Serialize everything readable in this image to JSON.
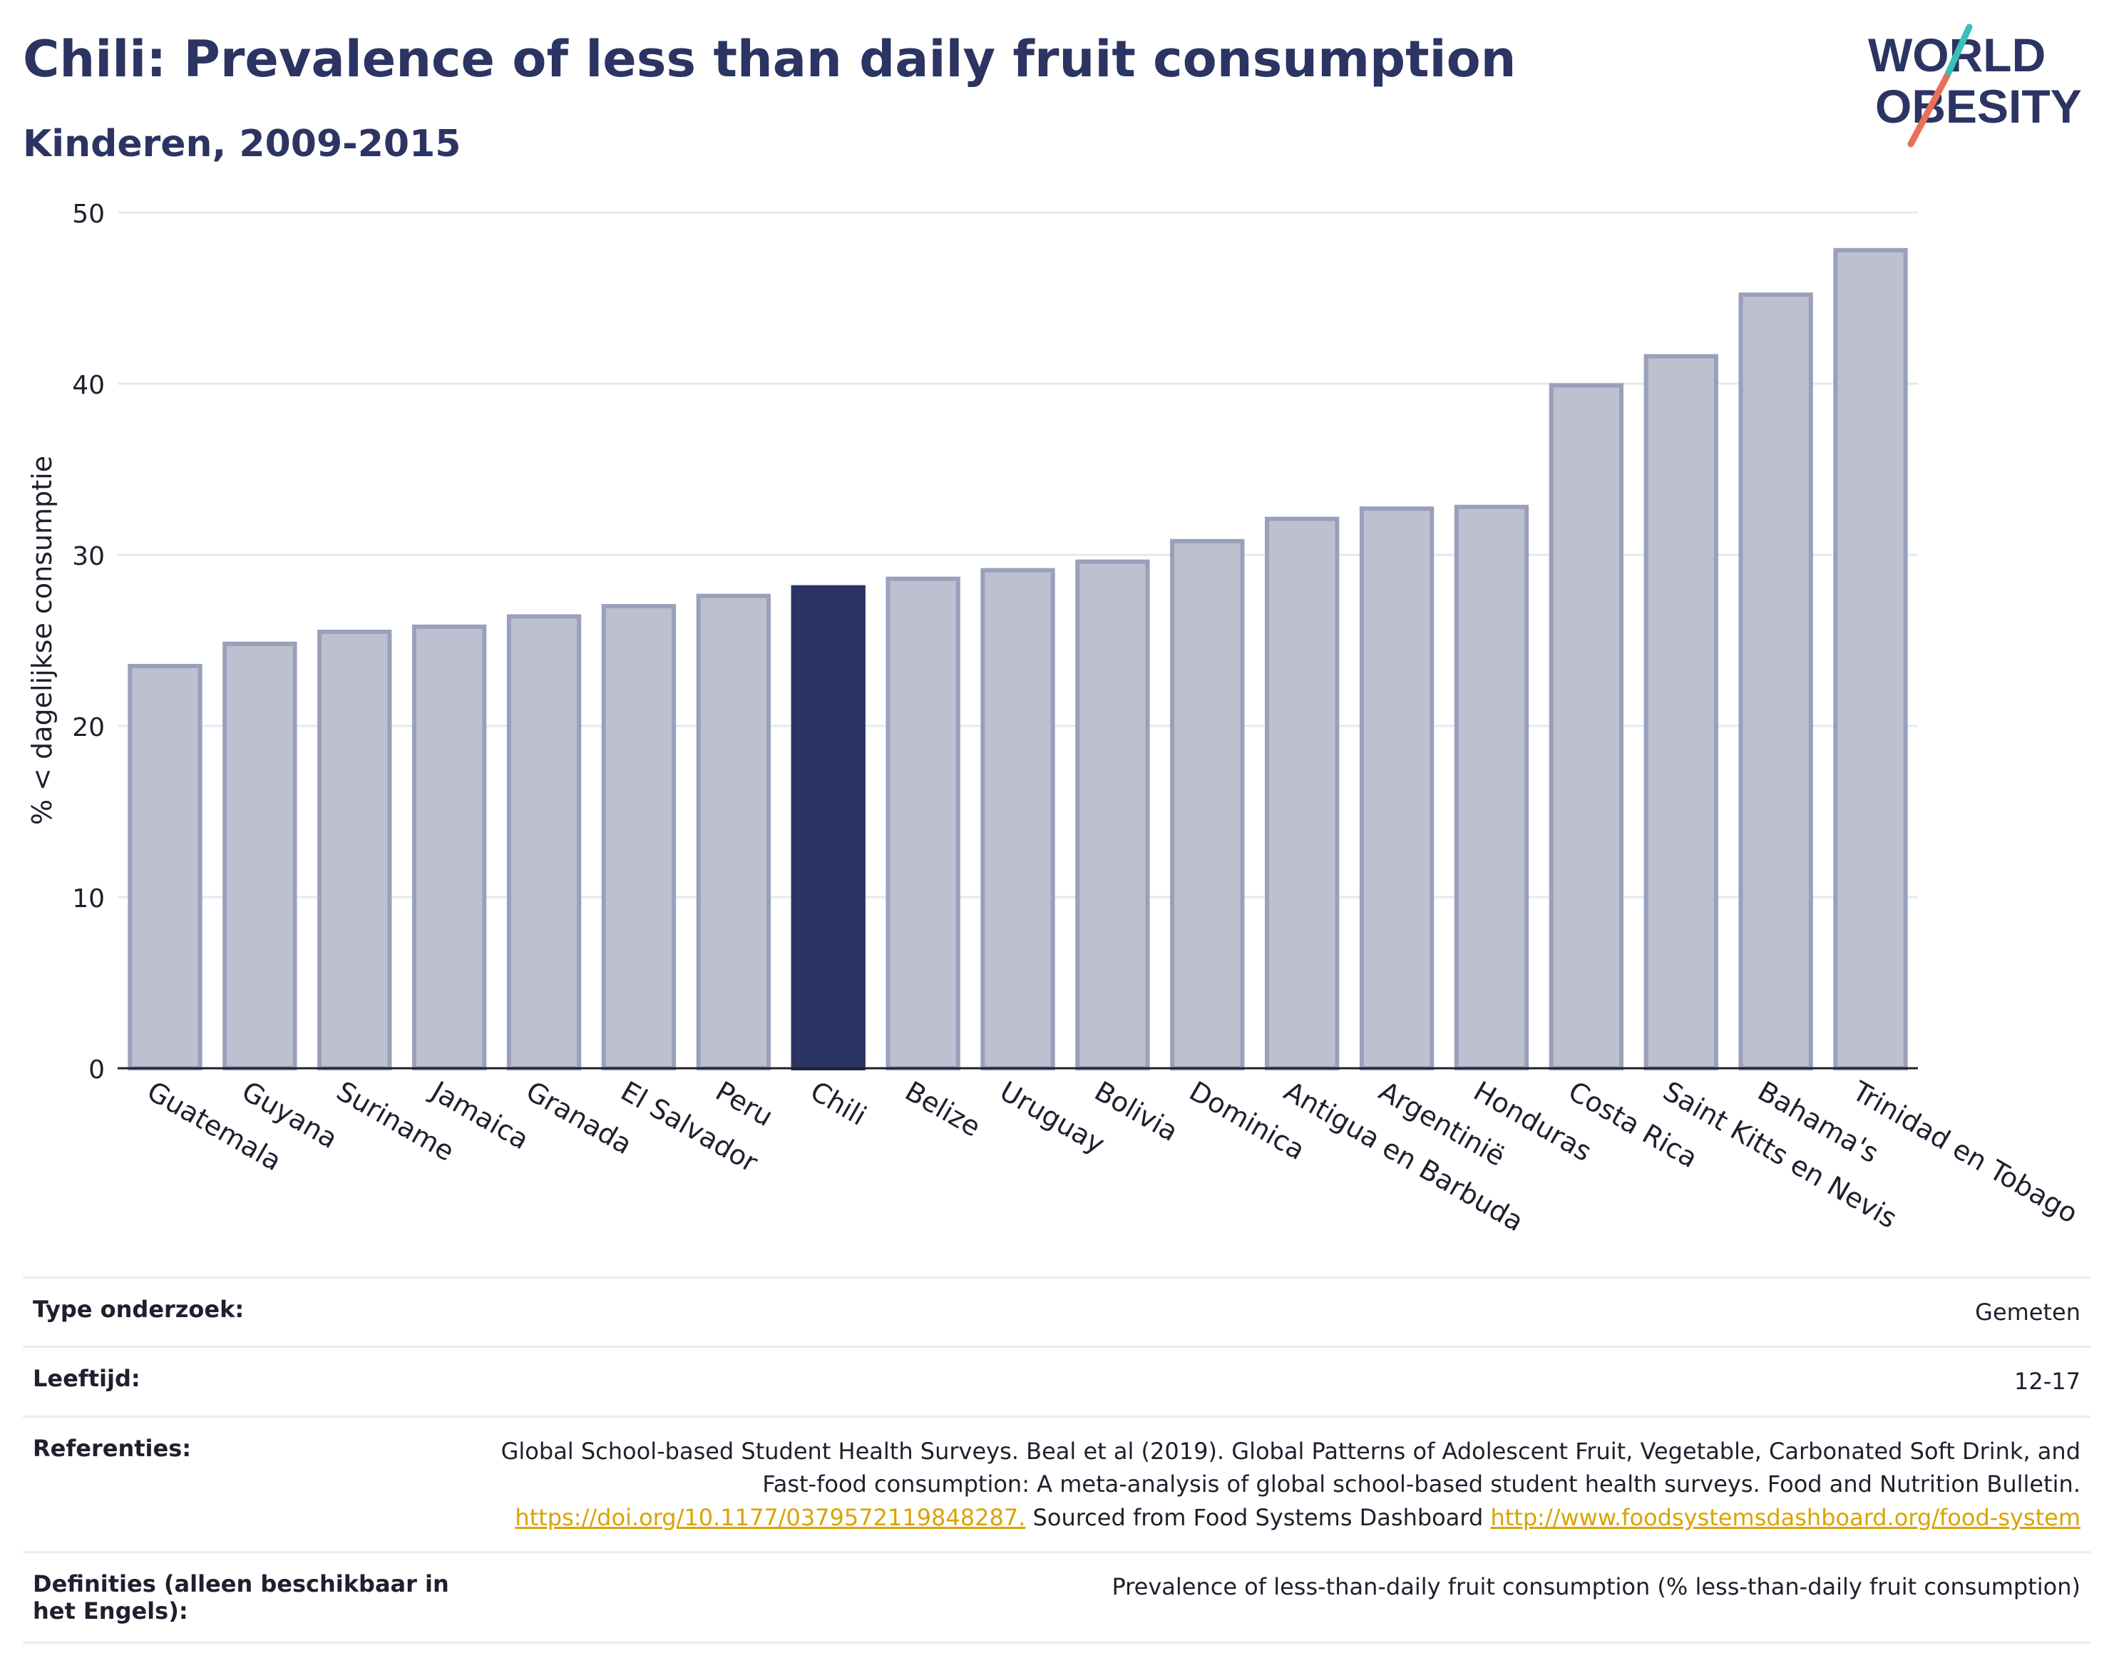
{
  "header": {
    "title": "Chili: Prevalence of less than daily fruit consumption",
    "subtitle": "Kinderen, 2009-2015"
  },
  "logo": {
    "line1": "WORLD",
    "line2": "OBESITY"
  },
  "colors": {
    "highlight": "#2b3462",
    "bar_fill": "#bcc0cf",
    "bar_stroke": "#9aa0bb",
    "grid": "#e6e8ee",
    "logo_teal": "#3bbfb6",
    "logo_coral": "#e8705a"
  },
  "chart_data": {
    "type": "bar",
    "title": "Chili: Prevalence of less than daily fruit consumption",
    "subtitle": "Kinderen, 2009-2015",
    "xlabel": "",
    "ylabel": "% < dagelijkse consumptie",
    "ylim": [
      0,
      50
    ],
    "yticks": [
      0,
      10,
      20,
      30,
      40,
      50
    ],
    "grid": true,
    "highlight": "Chili",
    "categories": [
      "Guatemala",
      "Guyana",
      "Suriname",
      "Jamaica",
      "Granada",
      "El Salvador",
      "Peru",
      "Chili",
      "Belize",
      "Uruguay",
      "Bolivia",
      "Dominica",
      "Antigua en Barbuda",
      "Argentinië",
      "Honduras",
      "Costa Rica",
      "Saint Kitts en Nevis",
      "Bahama's",
      "Trinidad en Tobago"
    ],
    "values": [
      23.5,
      24.8,
      25.5,
      25.8,
      26.4,
      27.0,
      27.6,
      28.1,
      28.6,
      29.1,
      29.6,
      30.8,
      32.1,
      32.7,
      32.8,
      39.9,
      41.6,
      45.2,
      47.8
    ]
  },
  "meta": {
    "type_label": "Type onderzoek:",
    "type_value": "Gemeten",
    "age_label": "Leeftijd:",
    "age_value": "12-17",
    "ref_label": "Referenties:",
    "ref_text1": "Global School-based Student Health Surveys. Beal et al (2019). Global Patterns of Adolescent Fruit, Vegetable, Carbonated Soft Drink, and Fast-food consumption: A meta-analysis of global school-based student health surveys. Food and Nutrition Bulletin.",
    "ref_link1": "https://doi.org/10.1177/0379572119848287.",
    "ref_text2": "Sourced from Food Systems Dashboard",
    "ref_link2": "http://www.foodsystemsdashboard.org/food-system",
    "def_label": "Definities (alleen beschikbaar in het Engels):",
    "def_value": "Prevalence of less-than-daily fruit consumption (% less-than-daily fruit consumption)"
  }
}
